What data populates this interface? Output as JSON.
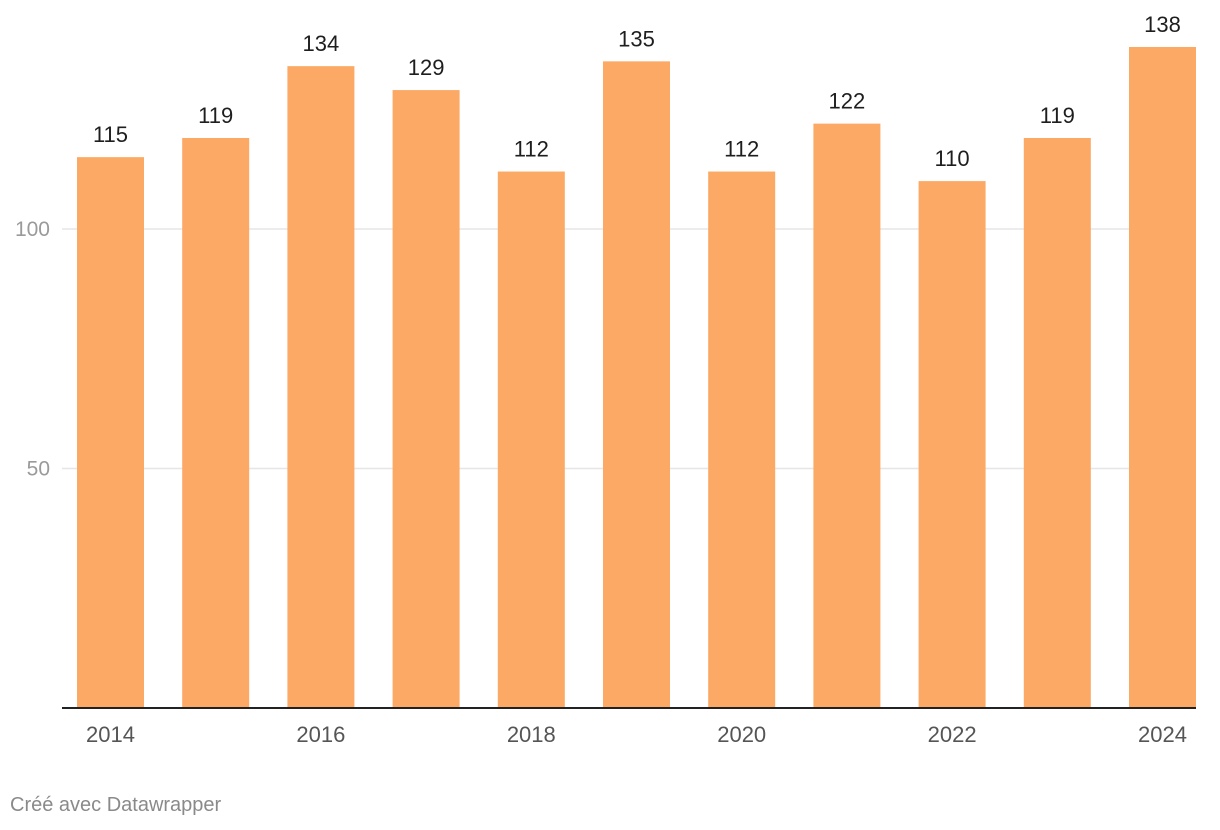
{
  "chart_data": {
    "type": "bar",
    "categories": [
      "2014",
      "2015",
      "2016",
      "2017",
      "2018",
      "2019",
      "2020",
      "2021",
      "2022",
      "2023",
      "2024"
    ],
    "values": [
      115,
      119,
      134,
      129,
      112,
      135,
      112,
      122,
      110,
      119,
      138
    ],
    "x_tick_labels": [
      "2014",
      "2016",
      "2018",
      "2020",
      "2022",
      "2024"
    ],
    "y_ticks": [
      50,
      100
    ],
    "ylim": [
      0,
      138
    ],
    "grid": true,
    "title": "",
    "xlabel": "",
    "ylabel": "",
    "bar_color": "#fba964",
    "grid_color": "#e6e6e6",
    "axis_color": "#222222",
    "tick_label_color": "#9a9a9a",
    "value_label_color": "#1e1e1e"
  },
  "footer": {
    "credit": "Créé avec Datawrapper"
  }
}
